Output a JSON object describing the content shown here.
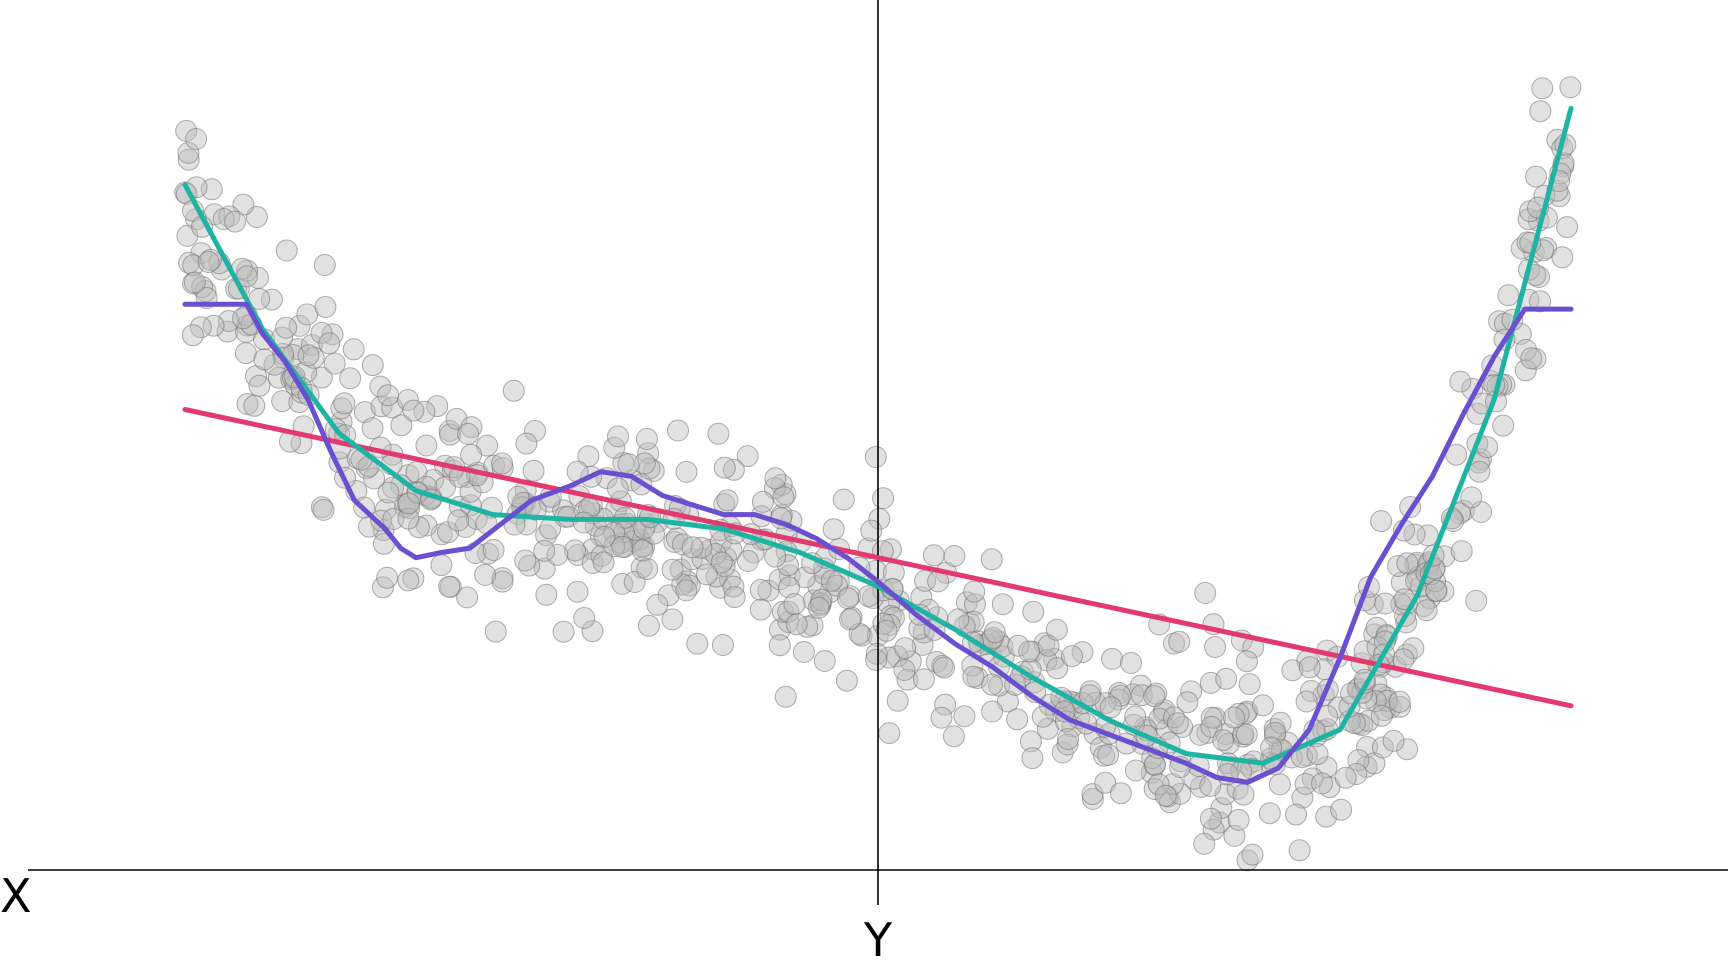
{
  "chart_data": {
    "type": "scatter",
    "xlabel": "X",
    "ylabel": "Y",
    "xlim": [
      -1.0,
      1.0
    ],
    "ylim": [
      -0.82,
      1.0
    ],
    "grid": false,
    "legend": "none",
    "axis_color": "#000000",
    "point_fill": "#bdbdbd",
    "point_stroke": "#6e6e6e",
    "point_opacity": 0.45,
    "line_colors": {
      "linear": "#e2396e",
      "polynomial": "#1fb3a4",
      "moving_average": "#6a4fd0"
    },
    "trend": {
      "left_x": -0.9,
      "right_x": 0.9,
      "lower_band": -0.65,
      "shoulder_x": -0.32,
      "shoulder_y": -0.08
    },
    "series": [
      {
        "type": "line",
        "color": "#e2396e",
        "x": [
          -0.9,
          0.9
        ],
        "y": [
          0.34,
          -0.28
        ]
      },
      {
        "type": "line",
        "color": "#1fb3a4",
        "x": [
          -0.9,
          -0.8,
          -0.7,
          -0.6,
          -0.5,
          -0.4,
          -0.3,
          -0.2,
          -0.1,
          0.0,
          0.1,
          0.2,
          0.3,
          0.4,
          0.5,
          0.6,
          0.7,
          0.8,
          0.9
        ],
        "y": [
          0.81,
          0.51,
          0.29,
          0.17,
          0.12,
          0.11,
          0.11,
          0.09,
          0.04,
          -0.03,
          -0.12,
          -0.22,
          -0.31,
          -0.38,
          -0.4,
          -0.33,
          -0.05,
          0.36,
          0.97
        ]
      },
      {
        "type": "line",
        "color": "#6a4fd0",
        "x": [
          -0.9,
          -0.82,
          -0.8,
          -0.77,
          -0.74,
          -0.71,
          -0.68,
          -0.64,
          -0.62,
          -0.6,
          -0.57,
          -0.53,
          -0.49,
          -0.45,
          -0.4,
          -0.36,
          -0.32,
          -0.28,
          -0.24,
          -0.2,
          -0.16,
          -0.12,
          -0.08,
          -0.04,
          0.0,
          0.05,
          0.1,
          0.15,
          0.2,
          0.25,
          0.3,
          0.35,
          0.4,
          0.44,
          0.48,
          0.52,
          0.56,
          0.6,
          0.64,
          0.68,
          0.72,
          0.76,
          0.8,
          0.84,
          0.9
        ],
        "y": [
          0.56,
          0.56,
          0.5,
          0.44,
          0.36,
          0.25,
          0.15,
          0.09,
          0.05,
          0.03,
          0.04,
          0.05,
          0.1,
          0.15,
          0.18,
          0.21,
          0.2,
          0.16,
          0.14,
          0.12,
          0.12,
          0.1,
          0.07,
          0.03,
          -0.02,
          -0.09,
          -0.15,
          -0.2,
          -0.26,
          -0.31,
          -0.34,
          -0.37,
          -0.4,
          -0.43,
          -0.44,
          -0.41,
          -0.33,
          -0.18,
          -0.01,
          0.1,
          0.2,
          0.33,
          0.45,
          0.55,
          0.55
        ]
      }
    ]
  }
}
